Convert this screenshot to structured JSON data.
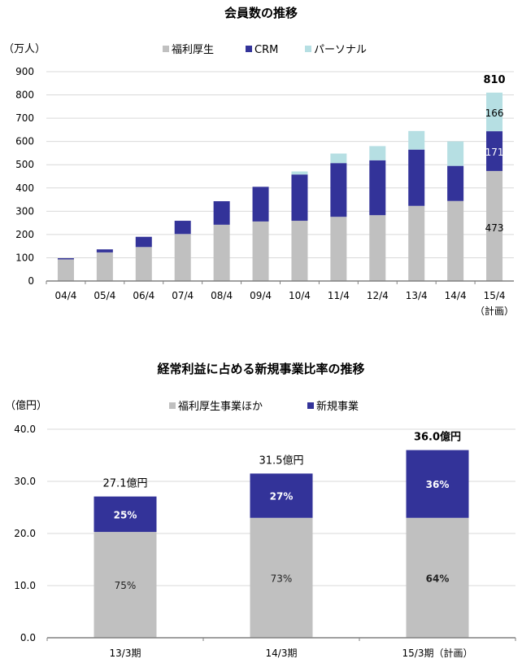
{
  "colors": {
    "fukuri": "#c0c0c0",
    "crm": "#333399",
    "personal": "#b6dfe3",
    "grid": "#d9d9d9",
    "axis": "#808080"
  },
  "chart_data": [
    {
      "type": "bar",
      "stacked": true,
      "title": "会員数の推移",
      "ylabel": "（万人）",
      "ylim": [
        0,
        900
      ],
      "yticks": [
        "0",
        "100",
        "200",
        "300",
        "400",
        "500",
        "600",
        "700",
        "800",
        "900"
      ],
      "categories": [
        "04/4",
        "05/4",
        "06/4",
        "07/4",
        "08/4",
        "09/4",
        "10/4",
        "11/4",
        "12/4",
        "13/4",
        "14/4",
        "15/4"
      ],
      "category_sublabels": [
        "",
        "",
        "",
        "",
        "",
        "",
        "",
        "",
        "",
        "",
        "",
        "（計画）"
      ],
      "legend_position": "top-center",
      "series": [
        {
          "name": "福利厚生",
          "color_key": "fukuri",
          "values": [
            93,
            123,
            146,
            202,
            242,
            256,
            259,
            276,
            283,
            323,
            344,
            473
          ]
        },
        {
          "name": "CRM",
          "color_key": "crm",
          "values": [
            5,
            13,
            44,
            57,
            101,
            149,
            199,
            231,
            236,
            242,
            151,
            171
          ]
        },
        {
          "name": "パーソナル",
          "color_key": "personal",
          "values": [
            0,
            0,
            0,
            0,
            0,
            0,
            13,
            41,
            61,
            80,
            105,
            166
          ]
        }
      ],
      "data_labels": {
        "total": "810",
        "segment_fukuri": "473",
        "segment_crm": "171",
        "segment_personal": "166"
      }
    },
    {
      "type": "bar",
      "stacked": true,
      "title": "経常利益に占める新規事業比率の推移",
      "ylabel": "（億円）",
      "ylim": [
        0,
        40
      ],
      "yticks": [
        "0.0",
        "10.0",
        "20.0",
        "30.0",
        "40.0"
      ],
      "categories": [
        "13/3期",
        "14/3期",
        "15/3期（計画）"
      ],
      "legend_position": "top-center",
      "series": [
        {
          "name": "福利厚生事業ほか",
          "color_key": "fukuri",
          "values": [
            20.3,
            23.0,
            23.0
          ],
          "labels": [
            "75%",
            "73%",
            "64%"
          ]
        },
        {
          "name": "新規事業",
          "color_key": "crm",
          "values": [
            6.8,
            8.5,
            13.0
          ],
          "labels": [
            "25%",
            "27%",
            "36%"
          ]
        }
      ],
      "totals": [
        "27.1億円",
        "31.5億円",
        "36.0億円"
      ]
    }
  ]
}
